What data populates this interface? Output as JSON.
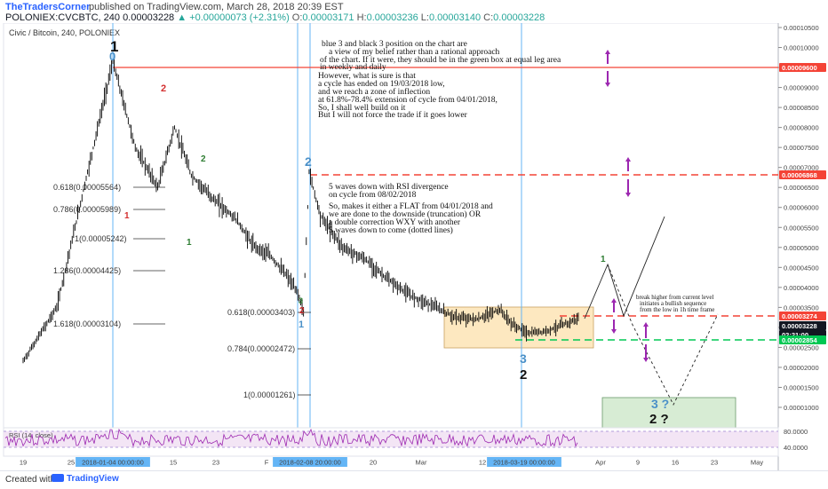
{
  "header": {
    "author": "TheTradersCorner",
    "published": "published on TradingView.com, March 28, 2018 20:39 EST",
    "symbol": "POLONIEX:CVCBTC, 240",
    "last": "0.00003228",
    "change": "▲ +0.00000073 (+2.31%)",
    "o_label": "O:",
    "o_value": "0.00003171",
    "h_label": "H:",
    "h_value": "0.00003236",
    "l_label": "L:",
    "l_value": "0.00003140",
    "c_label": "C:",
    "c_value": "0.00003228"
  },
  "pane_title": "Civic / Bitcoin, 240, POLONIEX",
  "rsi_label": "RSI (14, close)",
  "footer": {
    "created_with": "Created with",
    "brand": "TradingView"
  },
  "annotations": {
    "main_note": [
      "blue 3 and black 3 position on the chart are",
      "a view of my belief rather than a rational approach",
      "of the chart. If it were, they should be in the green box at equal leg area",
      "in weekly and daily",
      "However, what is sure is that",
      "a cycle has ended on 19/03/2018 low,",
      "and we reach a zone of inflection",
      "at 61.8%-78.4% extension of cycle from 04/01/2018,",
      "So, I shall well build on it",
      "",
      "But I will not force the trade if it goes lower"
    ],
    "mid_note": [
      "5 waves down with RSI divergence",
      "on cycle from 08/02/2018",
      "",
      "So, makes it either a FLAT from 04/01/2018 and",
      "we are done to the downside (truncation)      OR",
      "a double correction WXY with another",
      "5 waves down to come (dotted lines)"
    ],
    "right_note": [
      "break higher from current level",
      "initiates a bullish sequence",
      "from the low in 1h time frame"
    ]
  },
  "waves": {
    "black_1": "1",
    "blue_0": "0",
    "red_2_top": "2",
    "green_2": "2",
    "red_1": "1",
    "green_1_low": "1",
    "blue_2": "2",
    "green_3": "3",
    "red_2_low": "2",
    "blue_1": "1",
    "blue_3": "3",
    "black_2": "2",
    "green_1_proj": "1",
    "blue_3q": "3 ?",
    "black_2q": "2 ?"
  },
  "fib_left": [
    {
      "label": "0.618(0.00005564)"
    },
    {
      "label": "0.786(0.00005989)"
    },
    {
      "label": "1(0.00005242)"
    },
    {
      "label": "1.236(0.00004425)"
    },
    {
      "label": "1.618(0.00003104)"
    }
  ],
  "fib_right": [
    {
      "label": "0.618(0.00003403)"
    },
    {
      "label": "0.784(0.00002472)"
    },
    {
      "label": "1(0.00001261)"
    }
  ],
  "chart_data": {
    "type": "line",
    "series": [
      {
        "x": [
          "2017-12-19",
          "2017-12-25",
          "2018-01-01",
          "2018-01-04",
          "2018-01-08",
          "2018-01-12",
          "2018-01-15",
          "2018-01-18",
          "2018-01-22",
          "2018-01-26",
          "2018-01-29",
          "2018-02-01",
          "2018-02-04",
          "2018-02-06",
          "2018-02-07",
          "2018-02-08",
          "2018-02-10",
          "2018-02-14",
          "2018-02-18",
          "2018-02-22",
          "2018-02-26",
          "2018-03-02",
          "2018-03-06",
          "2018-03-10",
          "2018-03-14",
          "2018-03-16",
          "2018-03-19",
          "2018-03-22",
          "2018-03-26",
          "2018-03-28"
        ],
        "y": [
          2.15e-05,
          3.5e-05,
          7.8e-05,
          9.65e-05,
          7.5e-05,
          6.5e-05,
          8e-05,
          6.8e-05,
          6.2e-05,
          5.7e-05,
          5.05e-05,
          4.8e-05,
          4.3e-05,
          3.85e-05,
          3.4e-05,
          6.9e-05,
          5.8e-05,
          5e-05,
          4.7e-05,
          4.2e-05,
          3.8e-05,
          3.55e-05,
          3.25e-05,
          3.2e-05,
          3.45e-05,
          3.1e-05,
          2.85e-05,
          2.9e-05,
          3.1e-05,
          3.228e-05
        ]
      }
    ],
    "x_ticks": [
      "19",
      "25",
      "2018-01-04 00:00:00",
      "15",
      "23",
      "F",
      "2018-02-08 20:00:00",
      "20",
      "Mar",
      "12",
      "2018-03-19 00:00:00",
      "Apr",
      "9",
      "16",
      "23",
      "May"
    ],
    "y_ticks": [
      "0.00010500",
      "0.00010000",
      "0.00009500",
      "0.00009000",
      "0.00008500",
      "0.00008000",
      "0.00007500",
      "0.00007000",
      "0.00006500",
      "0.00006000",
      "0.00005500",
      "0.00005000",
      "0.00004500",
      "0.00004000",
      "0.00003500",
      "0.00003000",
      "0.00002500",
      "0.00002000",
      "0.00001500",
      "0.00001000"
    ],
    "ylim": [
      5e-06,
      0.000107
    ],
    "price_tags": [
      {
        "value": "0.00009600",
        "color": "#f44336"
      },
      {
        "value": "0.00006868",
        "color": "#f44336"
      },
      {
        "value": "0.00003274",
        "color": "#f44336"
      },
      {
        "value": "0.00003228",
        "color": "#131722"
      },
      {
        "value": "02:21:00",
        "color": "#131722"
      },
      {
        "value": "0.00002854",
        "color": "#00c853"
      }
    ],
    "rsi_ticks": [
      "80.0000",
      "40.0000"
    ],
    "colors": {
      "price": "#000000",
      "resistance": "#f44336",
      "support": "#00c853",
      "box": "#fde8c0",
      "target_box": "#d7ecd4",
      "arrow": "#9c27b0",
      "rsi": "#9c27b0",
      "rsi_band": "#f3e5f5",
      "vline": "#64b5f6"
    }
  }
}
